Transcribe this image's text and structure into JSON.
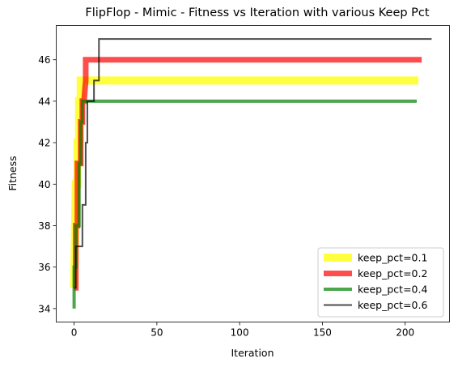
{
  "chart_data": {
    "type": "line",
    "title": "FlipFlop - Mimic - Fitness vs Iteration with various Keep Pct",
    "xlabel": "Iteration",
    "ylabel": "Fitness",
    "xlim": [
      -10.8,
      226.8
    ],
    "ylim": [
      33.35,
      47.65
    ],
    "xticks": [
      0,
      50,
      100,
      150,
      200
    ],
    "yticks": [
      34,
      36,
      38,
      40,
      42,
      44,
      46
    ],
    "grid": false,
    "legend_position": "lower-right",
    "series": [
      {
        "name": "keep_pct=0.1",
        "color": "#ffff00",
        "alpha": 0.75,
        "line_width": 10,
        "points": [
          [
            0,
            35
          ],
          [
            1,
            40
          ],
          [
            2,
            40
          ],
          [
            2,
            42
          ],
          [
            3,
            42
          ],
          [
            3,
            44
          ],
          [
            4,
            44
          ],
          [
            4,
            45
          ],
          [
            208,
            45
          ]
        ]
      },
      {
        "name": "keep_pct=0.2",
        "color": "#ff0000",
        "alpha": 0.7,
        "line_width": 7,
        "points": [
          [
            0,
            35
          ],
          [
            1,
            35
          ],
          [
            1,
            38
          ],
          [
            2,
            38
          ],
          [
            2,
            41
          ],
          [
            3,
            41
          ],
          [
            4,
            41
          ],
          [
            4,
            43
          ],
          [
            5,
            43
          ],
          [
            5,
            44
          ],
          [
            6,
            44
          ],
          [
            7,
            45
          ],
          [
            7,
            46
          ],
          [
            210,
            46
          ]
        ]
      },
      {
        "name": "keep_pct=0.4",
        "color": "#008000",
        "alpha": 0.7,
        "line_width": 4,
        "points": [
          [
            0,
            34
          ],
          [
            0,
            36
          ],
          [
            1,
            36
          ],
          [
            1,
            38
          ],
          [
            3,
            38
          ],
          [
            3,
            41
          ],
          [
            4,
            41
          ],
          [
            4,
            43
          ],
          [
            5,
            43
          ],
          [
            5,
            44
          ],
          [
            207,
            44
          ]
        ]
      },
      {
        "name": "keep_pct=0.6",
        "color": "#000000",
        "alpha": 0.7,
        "line_width": 2,
        "points": [
          [
            0,
            35
          ],
          [
            1,
            35
          ],
          [
            1,
            37
          ],
          [
            5,
            37
          ],
          [
            5,
            39
          ],
          [
            7,
            39
          ],
          [
            7,
            42
          ],
          [
            8,
            42
          ],
          [
            8,
            44
          ],
          [
            12,
            44
          ],
          [
            12,
            45
          ],
          [
            15,
            45
          ],
          [
            15,
            47
          ],
          [
            216,
            47
          ]
        ]
      }
    ]
  }
}
